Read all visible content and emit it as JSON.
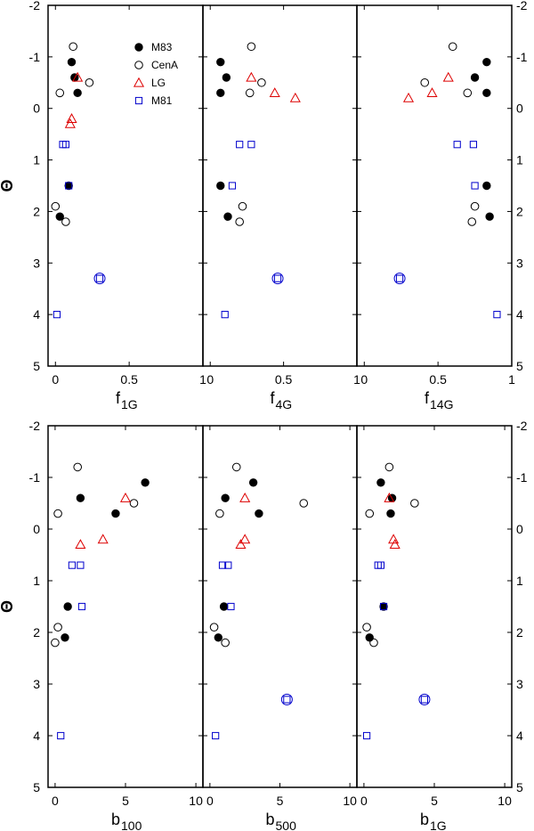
{
  "chart_data": [
    {
      "type": "scatter",
      "ylabel": "Θ",
      "ylim": [
        -2,
        5
      ],
      "yinverted": true,
      "legend": {
        "placement": "top-left",
        "entries": [
          {
            "name": "M83",
            "marker": "filled-circle",
            "color": "#000000"
          },
          {
            "name": "CenA",
            "marker": "open-circle",
            "color": "#000000"
          },
          {
            "name": "LG",
            "marker": "triangle",
            "color": "#dd0000"
          },
          {
            "name": "M81",
            "marker": "square",
            "color": "#0000cc"
          }
        ]
      },
      "panels": [
        {
          "xlabel": "f",
          "xlabel_sub": "1G",
          "xlim": [
            -0.05,
            1.0
          ],
          "xticks": [
            "0",
            "0.5",
            "1"
          ],
          "series": [
            {
              "name": "M83",
              "points": [
                [
                  0.11,
                  -0.9
                ],
                [
                  0.13,
                  -0.6
                ],
                [
                  0.15,
                  -0.3
                ],
                [
                  0.09,
                  1.5
                ],
                [
                  0.03,
                  2.1
                ]
              ]
            },
            {
              "name": "CenA",
              "points": [
                [
                  0.12,
                  -1.2
                ],
                [
                  0.23,
                  -0.5
                ],
                [
                  0.03,
                  -0.3
                ],
                [
                  0.0,
                  1.9
                ],
                [
                  0.07,
                  2.2
                ]
              ]
            },
            {
              "name": "LG",
              "points": [
                [
                  0.15,
                  -0.6
                ],
                [
                  0.11,
                  0.2
                ],
                [
                  0.1,
                  0.3
                ]
              ]
            },
            {
              "name": "M81",
              "points": [
                [
                  0.05,
                  0.7
                ],
                [
                  0.07,
                  0.7
                ],
                [
                  0.09,
                  1.5
                ],
                [
                  0.3,
                  3.3
                ],
                [
                  0.01,
                  4.0
                ]
              ]
            },
            {
              "name": "M81-ring",
              "points": [
                [
                  0.3,
                  3.3
                ]
              ]
            }
          ]
        },
        {
          "xlabel": "f",
          "xlabel_sub": "4G",
          "xlim": [
            -0.05,
            1.0
          ],
          "xticks": [
            "0",
            "0.5",
            "1"
          ],
          "series": [
            {
              "name": "M83",
              "points": [
                [
                  0.07,
                  -0.9
                ],
                [
                  0.11,
                  -0.6
                ],
                [
                  0.07,
                  -0.3
                ],
                [
                  0.07,
                  1.5
                ],
                [
                  0.12,
                  2.1
                ]
              ]
            },
            {
              "name": "CenA",
              "points": [
                [
                  0.28,
                  -1.2
                ],
                [
                  0.35,
                  -0.5
                ],
                [
                  0.27,
                  -0.3
                ],
                [
                  0.22,
                  1.9
                ],
                [
                  0.2,
                  2.2
                ]
              ]
            },
            {
              "name": "LG",
              "points": [
                [
                  0.28,
                  -0.6
                ],
                [
                  0.58,
                  -0.2
                ],
                [
                  0.44,
                  -0.3
                ]
              ]
            },
            {
              "name": "M81",
              "points": [
                [
                  0.2,
                  0.7
                ],
                [
                  0.28,
                  0.7
                ],
                [
                  0.15,
                  1.5
                ],
                [
                  0.46,
                  3.3
                ],
                [
                  0.1,
                  4.0
                ]
              ]
            },
            {
              "name": "M81-ring",
              "points": [
                [
                  0.46,
                  3.3
                ]
              ]
            }
          ]
        },
        {
          "xlabel": "f",
          "xlabel_sub": "14G",
          "xlim": [
            -0.05,
            1.0
          ],
          "xticks": [
            "0",
            "0.5",
            "1"
          ],
          "series": [
            {
              "name": "M83",
              "points": [
                [
                  0.83,
                  -0.9
                ],
                [
                  0.75,
                  -0.6
                ],
                [
                  0.83,
                  -0.3
                ],
                [
                  0.83,
                  1.5
                ],
                [
                  0.85,
                  2.1
                ]
              ]
            },
            {
              "name": "CenA",
              "points": [
                [
                  0.6,
                  -1.2
                ],
                [
                  0.41,
                  -0.5
                ],
                [
                  0.7,
                  -0.3
                ],
                [
                  0.75,
                  1.9
                ],
                [
                  0.73,
                  2.2
                ]
              ]
            },
            {
              "name": "LG",
              "points": [
                [
                  0.57,
                  -0.6
                ],
                [
                  0.3,
                  -0.2
                ],
                [
                  0.46,
                  -0.3
                ]
              ]
            },
            {
              "name": "M81",
              "points": [
                [
                  0.63,
                  0.7
                ],
                [
                  0.74,
                  0.7
                ],
                [
                  0.75,
                  1.5
                ],
                [
                  0.24,
                  3.3
                ],
                [
                  0.9,
                  4.0
                ]
              ]
            },
            {
              "name": "M81-ring",
              "points": [
                [
                  0.24,
                  3.3
                ]
              ]
            }
          ]
        },
        {
          "xlabel": "b",
          "xlabel_sub": "100",
          "xlim": [
            -0.5,
            10.5
          ],
          "xticks": [
            "0",
            "5",
            "10"
          ],
          "series": [
            {
              "name": "M83",
              "points": [
                [
                  6.4,
                  -0.9
                ],
                [
                  1.8,
                  -0.6
                ],
                [
                  4.3,
                  -0.3
                ],
                [
                  0.9,
                  1.5
                ],
                [
                  0.7,
                  2.1
                ]
              ]
            },
            {
              "name": "CenA",
              "points": [
                [
                  1.6,
                  -1.2
                ],
                [
                  5.6,
                  -0.5
                ],
                [
                  0.2,
                  -0.3
                ],
                [
                  0.2,
                  1.9
                ],
                [
                  0.0,
                  2.2
                ]
              ]
            },
            {
              "name": "LG",
              "points": [
                [
                  5.0,
                  -0.6
                ],
                [
                  3.4,
                  0.2
                ],
                [
                  1.8,
                  0.3
                ]
              ]
            },
            {
              "name": "M81",
              "points": [
                [
                  1.2,
                  0.7
                ],
                [
                  1.8,
                  0.7
                ],
                [
                  1.9,
                  1.5
                ],
                [
                  0.4,
                  4.0
                ]
              ]
            }
          ]
        },
        {
          "xlabel": "b",
          "xlabel_sub": "500",
          "xlim": [
            -0.5,
            10.5
          ],
          "xticks": [
            "0",
            "5",
            "10"
          ],
          "series": [
            {
              "name": "M83",
              "points": [
                [
                  3.1,
                  -0.9
                ],
                [
                  1.1,
                  -0.6
                ],
                [
                  3.5,
                  -0.3
                ],
                [
                  1.0,
                  1.5
                ],
                [
                  0.6,
                  2.1
                ]
              ]
            },
            {
              "name": "CenA",
              "points": [
                [
                  1.9,
                  -1.2
                ],
                [
                  6.7,
                  -0.5
                ],
                [
                  0.7,
                  -0.3
                ],
                [
                  0.3,
                  1.9
                ],
                [
                  1.1,
                  2.2
                ]
              ]
            },
            {
              "name": "LG",
              "points": [
                [
                  2.5,
                  -0.6
                ],
                [
                  2.5,
                  0.2
                ],
                [
                  2.2,
                  0.3
                ]
              ]
            },
            {
              "name": "M81",
              "points": [
                [
                  0.9,
                  0.7
                ],
                [
                  1.3,
                  0.7
                ],
                [
                  1.5,
                  1.5
                ],
                [
                  5.5,
                  3.3
                ],
                [
                  0.4,
                  4.0
                ]
              ]
            },
            {
              "name": "M81-ring",
              "points": [
                [
                  5.5,
                  3.3
                ]
              ]
            }
          ]
        },
        {
          "xlabel": "b",
          "xlabel_sub": "1G",
          "xlim": [
            -0.5,
            10.5
          ],
          "xticks": [
            "0",
            "5",
            "10"
          ],
          "series": [
            {
              "name": "M83",
              "points": [
                [
                  1.2,
                  -0.9
                ],
                [
                  2.0,
                  -0.6
                ],
                [
                  1.9,
                  -0.3
                ],
                [
                  1.4,
                  1.5
                ],
                [
                  0.4,
                  2.1
                ]
              ]
            },
            {
              "name": "CenA",
              "points": [
                [
                  1.8,
                  -1.2
                ],
                [
                  3.6,
                  -0.5
                ],
                [
                  0.4,
                  -0.3
                ],
                [
                  0.2,
                  1.9
                ],
                [
                  0.7,
                  2.2
                ]
              ]
            },
            {
              "name": "LG",
              "points": [
                [
                  1.8,
                  -0.6
                ],
                [
                  2.1,
                  0.2
                ],
                [
                  2.2,
                  0.3
                ]
              ]
            },
            {
              "name": "M81",
              "points": [
                [
                  1.0,
                  0.7
                ],
                [
                  1.2,
                  0.7
                ],
                [
                  1.4,
                  1.5
                ],
                [
                  4.3,
                  3.3
                ],
                [
                  0.2,
                  4.0
                ]
              ]
            },
            {
              "name": "M81-ring",
              "points": [
                [
                  4.3,
                  3.3
                ]
              ]
            }
          ]
        }
      ]
    }
  ]
}
